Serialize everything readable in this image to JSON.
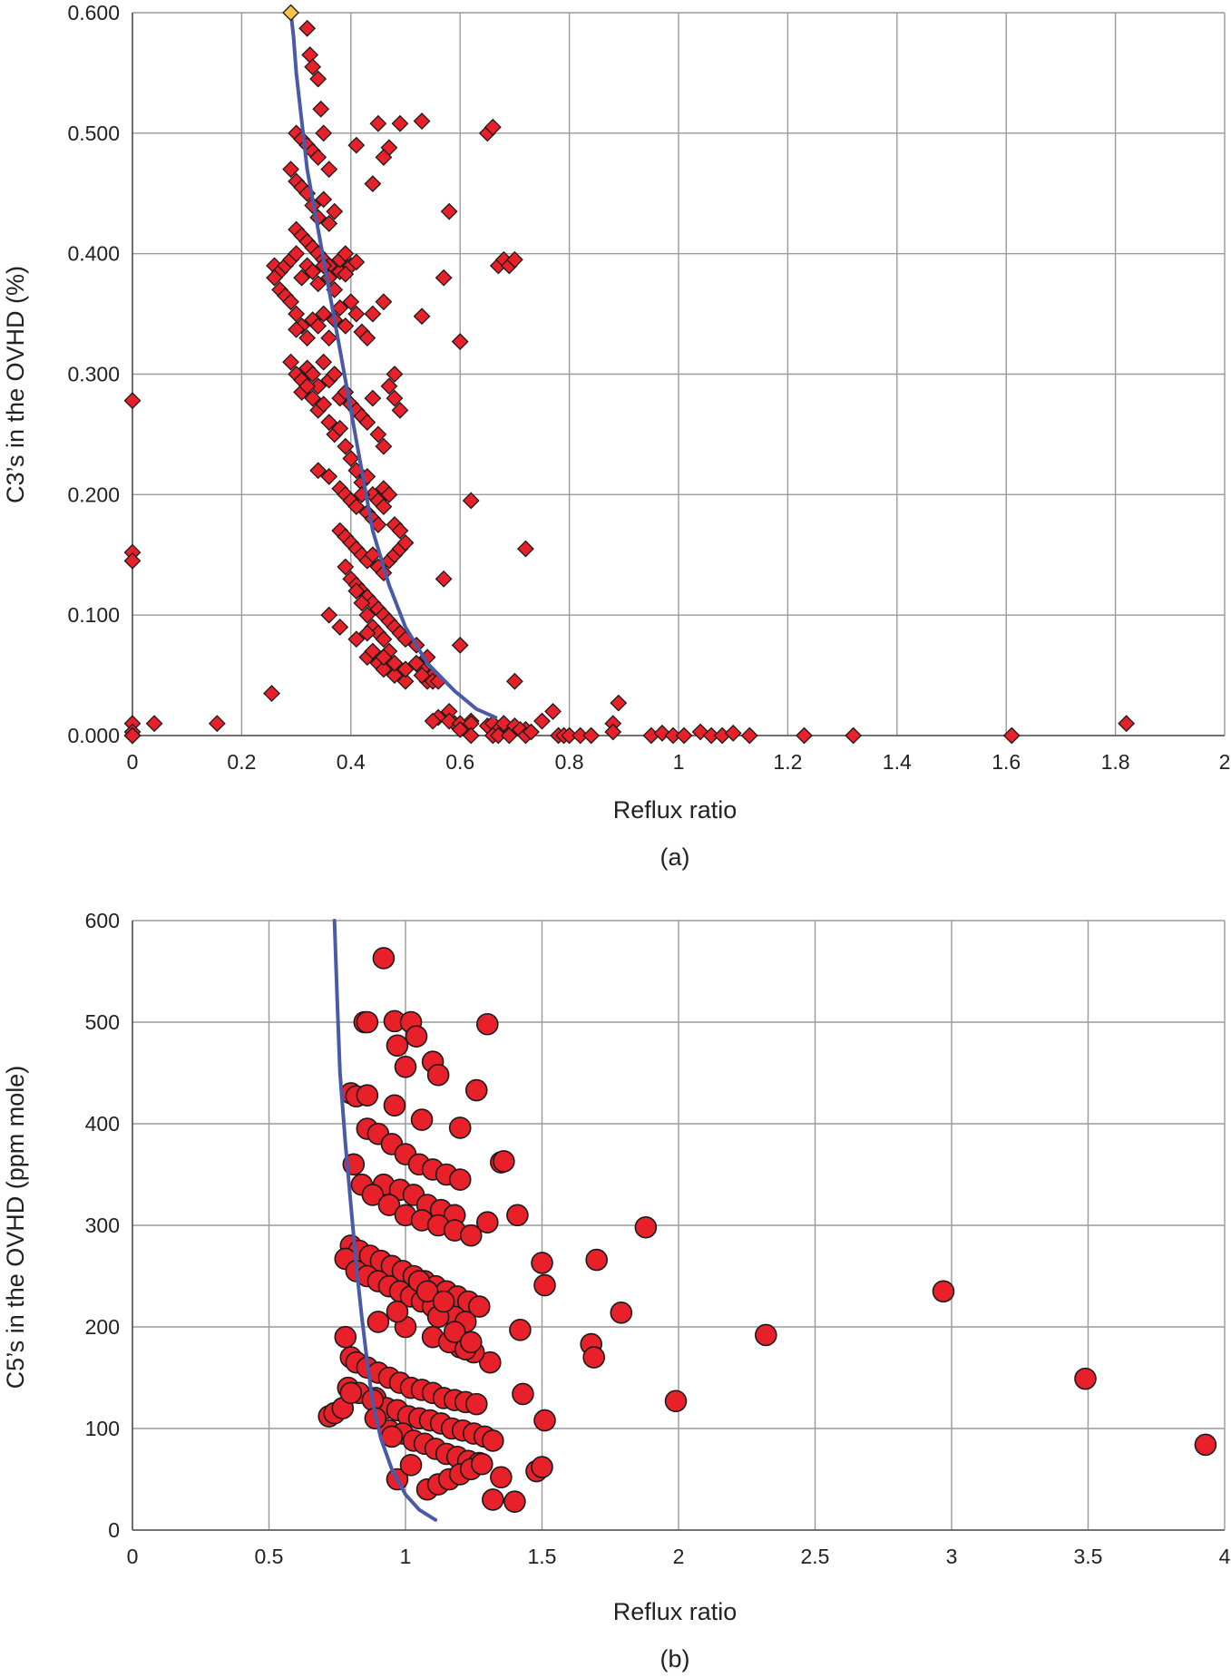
{
  "chart_data": [
    {
      "type": "scatter",
      "panel_label": "(a)",
      "xlabel": "Reflux ratio",
      "ylabel": "C3’s in the OVHD (%)",
      "xlim": [
        0,
        2
      ],
      "ylim": [
        0,
        0.6
      ],
      "x_ticks": [
        "0",
        "0.2",
        "0.4",
        "0.6",
        "0.8",
        "1",
        "1.2",
        "1.4",
        "1.6",
        "1.8",
        "2"
      ],
      "y_ticks": [
        "0.000",
        "0.100",
        "0.200",
        "0.300",
        "0.400",
        "0.500",
        "0.600"
      ],
      "grid": true,
      "marker": "diamond",
      "marker_color": "#e8202a",
      "line_color": "#4a5aa8",
      "highlight_color": "#f5c542",
      "highlight_point": [
        0.29,
        0.6
      ],
      "series": [
        {
          "kind": "points",
          "x": [
            0.0,
            0.0,
            0.0,
            0.0,
            0.0,
            0.0,
            0.0,
            0.0,
            0.04,
            0.155,
            0.255,
            0.32,
            0.325,
            0.33,
            0.34,
            0.345,
            0.3,
            0.31,
            0.32,
            0.33,
            0.34,
            0.35,
            0.36,
            0.29,
            0.3,
            0.31,
            0.32,
            0.33,
            0.34,
            0.35,
            0.36,
            0.37,
            0.3,
            0.31,
            0.32,
            0.33,
            0.34,
            0.35,
            0.36,
            0.38,
            0.26,
            0.27,
            0.28,
            0.29,
            0.3,
            0.31,
            0.32,
            0.33,
            0.34,
            0.35,
            0.36,
            0.37,
            0.38,
            0.39,
            0.4,
            0.26,
            0.27,
            0.28,
            0.29,
            0.3,
            0.31,
            0.32,
            0.33,
            0.34,
            0.35,
            0.36,
            0.37,
            0.38,
            0.39,
            0.4,
            0.41,
            0.42,
            0.43,
            0.44,
            0.29,
            0.3,
            0.31,
            0.32,
            0.33,
            0.34,
            0.35,
            0.36,
            0.37,
            0.38,
            0.39,
            0.4,
            0.41,
            0.42,
            0.43,
            0.44,
            0.45,
            0.46,
            0.47,
            0.48,
            0.49,
            0.31,
            0.32,
            0.33,
            0.34,
            0.35,
            0.36,
            0.37,
            0.38,
            0.39,
            0.4,
            0.41,
            0.42,
            0.43,
            0.44,
            0.45,
            0.46,
            0.34,
            0.36,
            0.38,
            0.39,
            0.4,
            0.41,
            0.42,
            0.43,
            0.44,
            0.45,
            0.46,
            0.47,
            0.48,
            0.49,
            0.38,
            0.39,
            0.4,
            0.41,
            0.42,
            0.43,
            0.44,
            0.45,
            0.46,
            0.47,
            0.48,
            0.49,
            0.5,
            0.39,
            0.4,
            0.41,
            0.42,
            0.43,
            0.44,
            0.45,
            0.46,
            0.47,
            0.48,
            0.49,
            0.5,
            0.52,
            0.54,
            0.55,
            0.41,
            0.42,
            0.43,
            0.44,
            0.45,
            0.46,
            0.47,
            0.48,
            0.5,
            0.43,
            0.45,
            0.46,
            0.48,
            0.5,
            0.52,
            0.53,
            0.54,
            0.55,
            0.36,
            0.38,
            0.41,
            0.43,
            0.44,
            0.46,
            0.48,
            0.5,
            0.52,
            0.53,
            0.55,
            0.56,
            0.57,
            0.58,
            0.59,
            0.6,
            0.62,
            0.56,
            0.58,
            0.6,
            0.6,
            0.62,
            0.65,
            0.66,
            0.67,
            0.68,
            0.7,
            0.72,
            0.55,
            0.62,
            0.66,
            0.67,
            0.68,
            0.69,
            0.7,
            0.71,
            0.72,
            0.73,
            0.75,
            0.77,
            0.78,
            0.79,
            0.8,
            0.82,
            0.84,
            0.88,
            0.89,
            0.95,
            0.97,
            0.99,
            1.01,
            1.04,
            1.06,
            1.08,
            1.1,
            1.13,
            1.23,
            1.32,
            1.61,
            1.82,
            0.41,
            0.45,
            0.47,
            0.49,
            0.53,
            0.58,
            0.6,
            0.62,
            0.72,
            0.57,
            0.88,
            0.7,
            0.65,
            0.66,
            0.67,
            0.68,
            0.69,
            0.7,
            0.53,
            0.39,
            0.41,
            0.44,
            0.46,
            0.48,
            0.3,
            0.46
          ],
          "y": [
            0.278,
            0.152,
            0.145,
            0.01,
            0.0,
            0.003,
            0.0,
            0.0,
            0.01,
            0.01,
            0.035,
            0.587,
            0.565,
            0.555,
            0.545,
            0.52,
            0.5,
            0.495,
            0.49,
            0.485,
            0.48,
            0.5,
            0.47,
            0.47,
            0.46,
            0.455,
            0.45,
            0.44,
            0.43,
            0.445,
            0.425,
            0.435,
            0.42,
            0.415,
            0.41,
            0.405,
            0.4,
            0.395,
            0.39,
            0.385,
            0.39,
            0.385,
            0.39,
            0.395,
            0.4,
            0.38,
            0.39,
            0.385,
            0.375,
            0.39,
            0.38,
            0.37,
            0.395,
            0.4,
            0.39,
            0.38,
            0.37,
            0.365,
            0.36,
            0.35,
            0.34,
            0.33,
            0.345,
            0.34,
            0.35,
            0.33,
            0.345,
            0.355,
            0.34,
            0.36,
            0.35,
            0.335,
            0.33,
            0.35,
            0.31,
            0.3,
            0.295,
            0.305,
            0.3,
            0.29,
            0.31,
            0.295,
            0.3,
            0.28,
            0.285,
            0.275,
            0.27,
            0.265,
            0.26,
            0.28,
            0.25,
            0.24,
            0.29,
            0.28,
            0.27,
            0.285,
            0.29,
            0.28,
            0.27,
            0.275,
            0.26,
            0.25,
            0.255,
            0.24,
            0.23,
            0.22,
            0.21,
            0.215,
            0.2,
            0.195,
            0.205,
            0.22,
            0.215,
            0.205,
            0.2,
            0.195,
            0.19,
            0.2,
            0.185,
            0.18,
            0.175,
            0.19,
            0.2,
            0.175,
            0.17,
            0.17,
            0.165,
            0.16,
            0.155,
            0.15,
            0.145,
            0.15,
            0.14,
            0.135,
            0.145,
            0.15,
            0.155,
            0.16,
            0.14,
            0.13,
            0.125,
            0.12,
            0.115,
            0.11,
            0.105,
            0.1,
            0.095,
            0.09,
            0.085,
            0.08,
            0.075,
            0.065,
            0.05,
            0.12,
            0.11,
            0.1,
            0.09,
            0.085,
            0.08,
            0.07,
            0.06,
            0.055,
            0.065,
            0.06,
            0.055,
            0.05,
            0.045,
            0.06,
            0.055,
            0.045,
            0.05,
            0.1,
            0.09,
            0.08,
            0.085,
            0.07,
            0.065,
            0.06,
            0.055,
            0.06,
            0.05,
            0.045,
            0.045,
            0.13,
            0.02,
            0.01,
            0.075,
            0.012,
            0.015,
            0.012,
            0.01,
            0.005,
            0.01,
            0.008,
            0.01,
            0.005,
            0.01,
            0.005,
            0.005,
            0.012,
            0.0,
            0.0,
            0.0,
            0.01,
            0.0,
            0.008,
            0.005,
            0.0,
            0.003,
            0.012,
            0.02,
            0.0,
            0.0,
            0.0,
            0.0,
            0.0,
            0.01,
            0.027,
            0.0,
            0.002,
            0.0,
            0.0,
            0.003,
            0.0,
            0.0,
            0.002,
            0.0,
            0.0,
            0.0,
            0.0,
            0.01,
            0.49,
            0.508,
            0.488,
            0.508,
            0.51,
            0.435,
            0.327,
            0.195,
            0.155,
            0.38,
            0.003,
            0.045,
            0.5,
            0.505,
            0.39,
            0.395,
            0.39,
            0.395,
            0.348,
            0.383,
            0.393,
            0.458,
            0.48,
            0.3,
            0.337,
            0.36
          ]
        },
        {
          "kind": "curve",
          "x": [
            0.29,
            0.295,
            0.3,
            0.31,
            0.32,
            0.34,
            0.36,
            0.38,
            0.4,
            0.42,
            0.44,
            0.47,
            0.5,
            0.54,
            0.59,
            0.63,
            0.665
          ],
          "y": [
            0.6,
            0.58,
            0.55,
            0.51,
            0.47,
            0.42,
            0.37,
            0.32,
            0.27,
            0.22,
            0.17,
            0.125,
            0.09,
            0.06,
            0.037,
            0.022,
            0.015
          ]
        }
      ]
    },
    {
      "type": "scatter",
      "panel_label": "(b)",
      "xlabel": "Reflux ratio",
      "ylabel": "C5’s in the OVHD (ppm mole)",
      "xlim": [
        0,
        4
      ],
      "ylim": [
        0,
        600
      ],
      "x_ticks": [
        "0",
        "0.5",
        "1",
        "1.5",
        "2",
        "2.5",
        "3",
        "3.5",
        "4"
      ],
      "y_ticks": [
        "0",
        "100",
        "200",
        "300",
        "400",
        "500",
        "600"
      ],
      "grid": true,
      "marker": "circle",
      "marker_color": "#e8202a",
      "line_color": "#4a5aa8",
      "series": [
        {
          "kind": "points",
          "x": [
            0.92,
            0.85,
            0.86,
            0.96,
            1.02,
            1.04,
            1.3,
            1.1,
            0.97,
            1.0,
            1.12,
            0.8,
            0.82,
            0.86,
            0.96,
            1.06,
            1.2,
            1.26,
            0.86,
            0.9,
            0.95,
            1.0,
            1.05,
            1.1,
            1.15,
            1.2,
            0.92,
            0.98,
            1.03,
            1.08,
            1.13,
            1.18,
            0.81,
            0.84,
            0.88,
            0.94,
            1.0,
            1.06,
            1.12,
            1.18,
            1.24,
            0.8,
            0.83,
            0.87,
            0.91,
            0.95,
            0.99,
            1.03,
            1.07,
            1.11,
            1.15,
            1.19,
            1.23,
            1.27,
            0.78,
            0.82,
            0.86,
            0.9,
            0.94,
            0.98,
            1.02,
            1.06,
            1.1,
            1.14,
            1.18,
            1.22,
            1.3,
            1.35,
            1.36,
            1.41,
            1.88,
            1.5,
            1.7,
            1.51,
            1.79,
            1.42,
            1.68,
            1.69,
            2.32,
            2.97,
            1.99,
            3.49,
            3.93,
            0.78,
            0.8,
            0.82,
            0.86,
            0.9,
            0.94,
            0.98,
            1.02,
            1.06,
            1.1,
            1.14,
            1.18,
            1.22,
            1.26,
            1.31,
            0.79,
            0.83,
            0.89,
            0.93,
            0.97,
            1.01,
            1.05,
            1.09,
            1.13,
            1.17,
            1.21,
            1.25,
            1.29,
            1.32,
            0.72,
            0.74,
            0.77,
            0.8,
            0.88,
            0.94,
            0.99,
            1.03,
            1.07,
            1.11,
            1.15,
            1.19,
            1.23,
            1.27,
            1.43,
            1.51,
            0.89,
            0.97,
            1.02,
            1.08,
            1.12,
            1.16,
            1.2,
            1.24,
            1.28,
            1.35,
            1.32,
            1.48,
            1.5,
            1.4,
            0.95,
            1.0,
            1.12,
            1.2,
            1.25,
            1.1,
            1.16,
            1.22,
            1.05,
            0.9,
            0.97,
            1.08,
            1.14,
            1.18,
            1.24
          ],
          "y": [
            563,
            500,
            500,
            501,
            500,
            486,
            498,
            461,
            477,
            456,
            448,
            430,
            427,
            428,
            418,
            404,
            396,
            433,
            395,
            390,
            380,
            370,
            360,
            355,
            350,
            345,
            340,
            335,
            330,
            320,
            315,
            310,
            360,
            340,
            330,
            320,
            310,
            305,
            300,
            295,
            290,
            280,
            275,
            270,
            265,
            260,
            255,
            250,
            245,
            240,
            235,
            230,
            225,
            220,
            267,
            255,
            250,
            245,
            240,
            235,
            230,
            225,
            220,
            215,
            210,
            205,
            303,
            362,
            363,
            310,
            298,
            263,
            266,
            241,
            214,
            197,
            183,
            170,
            192,
            235,
            127,
            149,
            84,
            190,
            170,
            165,
            160,
            155,
            150,
            145,
            140,
            138,
            135,
            130,
            128,
            126,
            124,
            165,
            140,
            135,
            130,
            120,
            118,
            112,
            110,
            108,
            105,
            100,
            98,
            95,
            92,
            88,
            112,
            115,
            120,
            135,
            128,
            98,
            95,
            88,
            85,
            80,
            75,
            72,
            68,
            66,
            134,
            108,
            110,
            50,
            64,
            40,
            45,
            50,
            55,
            60,
            65,
            52,
            30,
            58,
            62,
            28,
            92,
            200,
            210,
            180,
            175,
            190,
            185,
            178,
            245,
            205,
            215,
            235,
            225,
            195,
            185
          ]
        },
        {
          "kind": "curve",
          "x": [
            0.74,
            0.75,
            0.76,
            0.78,
            0.8,
            0.82,
            0.84,
            0.86,
            0.88,
            0.91,
            0.95,
            1.0,
            1.05,
            1.11
          ],
          "y": [
            600,
            520,
            450,
            380,
            320,
            260,
            210,
            165,
            125,
            90,
            60,
            35,
            20,
            10
          ]
        }
      ]
    }
  ]
}
